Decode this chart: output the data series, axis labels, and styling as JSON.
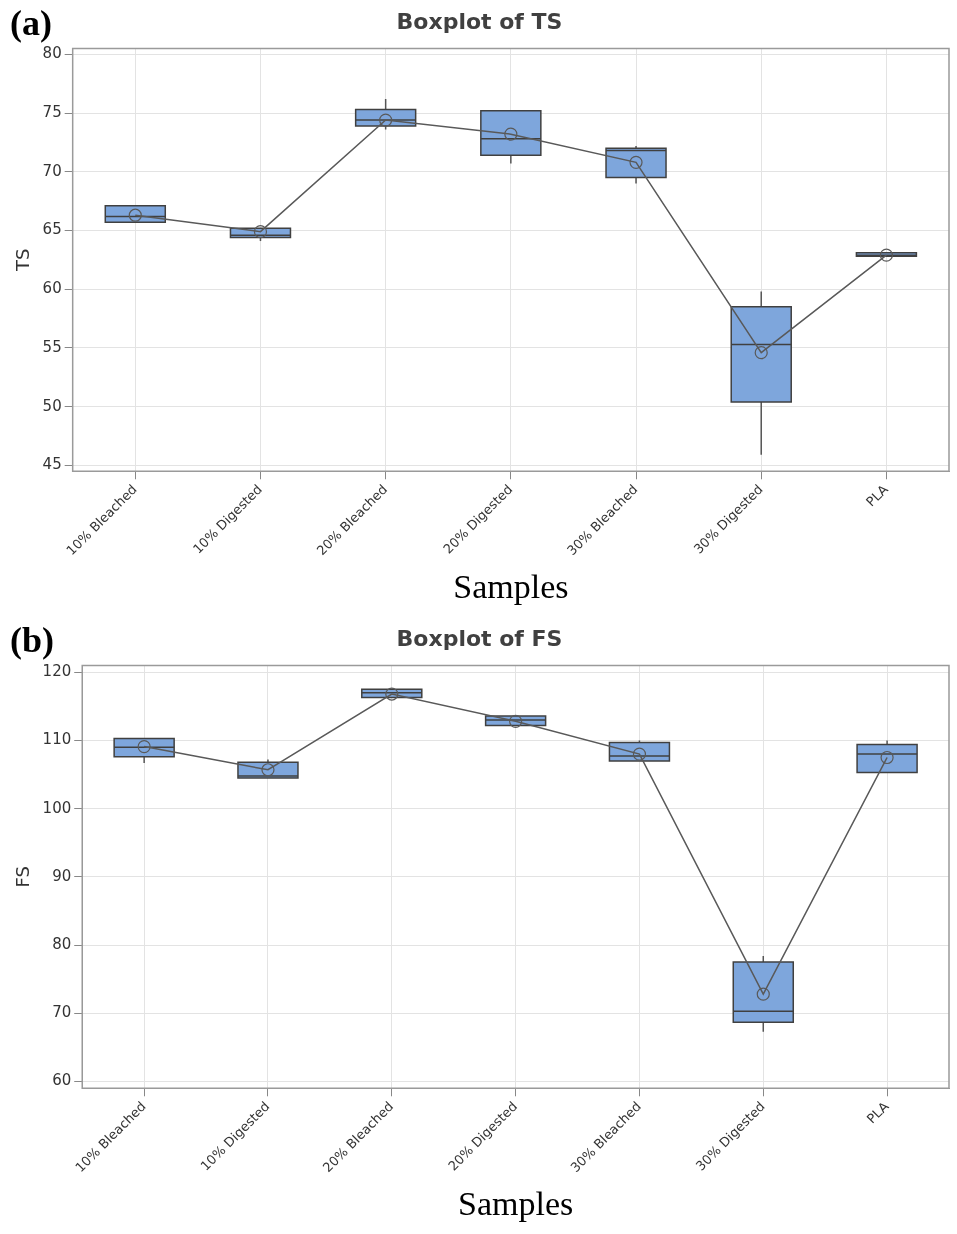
{
  "chart_data": [
    {
      "type": "box",
      "title": "Boxplot of TS",
      "xlabel": "Samples",
      "ylabel": "TS",
      "annotations": [
        "(a)"
      ],
      "categories": [
        "10% Bleached",
        "10% Digested",
        "20% Bleached",
        "20% Digested",
        "30% Bleached",
        "30% Digested",
        "PLA"
      ],
      "color": "#7ea6dc",
      "boxes": [
        {
          "low": 65.7,
          "q1": 65.7,
          "median": 66.2,
          "q3": 67.1,
          "high": 67.1
        },
        {
          "low": 64.1,
          "q1": 64.4,
          "median": 64.6,
          "q3": 65.2,
          "high": 65.2
        },
        {
          "low": 73.6,
          "q1": 73.9,
          "median": 74.4,
          "q3": 75.3,
          "high": 76.2
        },
        {
          "low": 70.7,
          "q1": 71.4,
          "median": 72.8,
          "q3": 75.2,
          "high": 75.2
        },
        {
          "low": 69.0,
          "q1": 69.5,
          "median": 71.8,
          "q3": 72.0,
          "high": 72.2
        },
        {
          "low": 45.9,
          "q1": 50.4,
          "median": 55.3,
          "q3": 58.5,
          "high": 59.8
        },
        {
          "low": 62.8,
          "q1": 62.8,
          "median": 62.9,
          "q3": 63.1,
          "high": 63.1
        }
      ],
      "series": [
        {
          "type": "line",
          "color": "#595959",
          "marker": "circle",
          "values": [
            66.3,
            64.9,
            74.4,
            73.2,
            70.8,
            54.6,
            62.9
          ]
        }
      ],
      "ylim": [
        44.5,
        80.5
      ],
      "yticks": [
        45,
        50,
        55,
        60,
        65,
        70,
        75,
        80
      ],
      "grid": true,
      "legend": false
    },
    {
      "type": "box",
      "title": "Boxplot of FS",
      "xlabel": "Samples",
      "ylabel": "FS",
      "annotations": [
        "(b)"
      ],
      "categories": [
        "10% Bleached",
        "10% Digested",
        "20% Bleached",
        "20% Digested",
        "30% Bleached",
        "30% Digested",
        "PLA"
      ],
      "color": "#7ea6dc",
      "boxes": [
        {
          "low": 106.7,
          "q1": 107.6,
          "median": 109.0,
          "q3": 110.3,
          "high": 110.3
        },
        {
          "low": 104.5,
          "q1": 104.5,
          "median": 104.8,
          "q3": 106.8,
          "high": 107.2
        },
        {
          "low": 116.3,
          "q1": 116.3,
          "median": 117.0,
          "q3": 117.5,
          "high": 117.5
        },
        {
          "low": 112.2,
          "q1": 112.2,
          "median": 113.0,
          "q3": 113.6,
          "high": 113.6
        },
        {
          "low": 107.0,
          "q1": 107.0,
          "median": 107.7,
          "q3": 109.7,
          "high": 110.0
        },
        {
          "low": 67.3,
          "q1": 68.7,
          "median": 70.3,
          "q3": 77.5,
          "high": 78.4
        },
        {
          "low": 105.3,
          "q1": 105.3,
          "median": 108.0,
          "q3": 109.4,
          "high": 110.0
        }
      ],
      "series": [
        {
          "type": "line",
          "color": "#595959",
          "marker": "circle",
          "values": [
            109.1,
            105.7,
            116.8,
            112.8,
            108.0,
            72.8,
            107.5
          ]
        }
      ],
      "ylim": [
        59,
        121
      ],
      "yticks": [
        60,
        70,
        80,
        90,
        100,
        110,
        120
      ],
      "grid": true,
      "legend": false
    }
  ]
}
